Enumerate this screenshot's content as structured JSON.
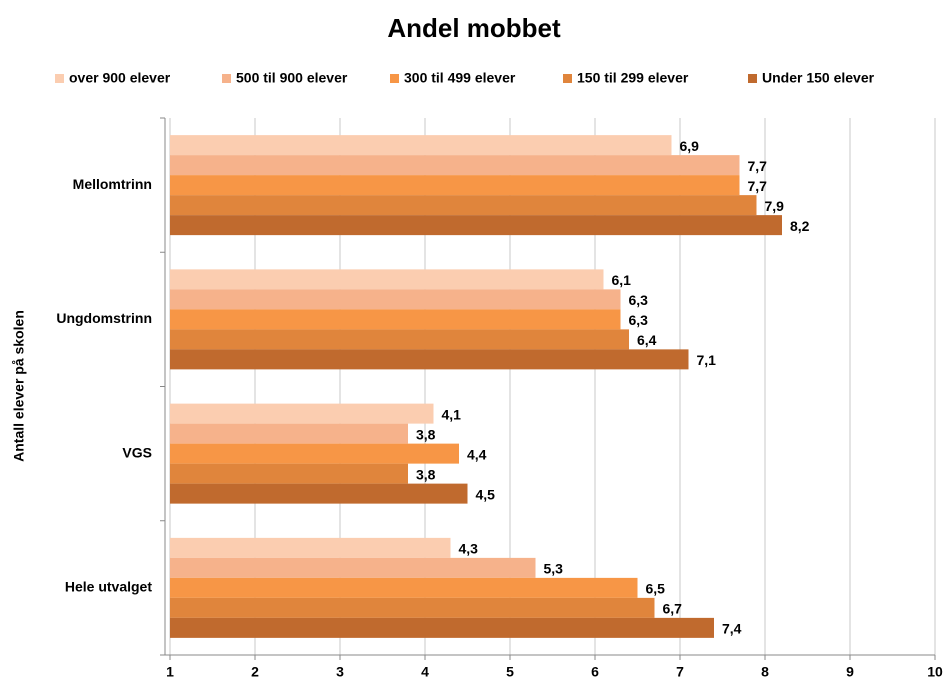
{
  "chart_data": {
    "type": "hbar",
    "title": "Andel mobbet",
    "y_label": "Antall elever på skolen",
    "categories": [
      "Mellomtrinn",
      "Ungdomstrinn",
      "VGS",
      "Hele utvalget"
    ],
    "series": [
      {
        "name": "over 900 elever",
        "color": "#fbcdb0",
        "values": [
          6.9,
          6.1,
          4.1,
          4.3
        ],
        "value_labels": [
          "6,9",
          "6,1",
          "4,1",
          "4,3"
        ]
      },
      {
        "name": "500 til 900 elever",
        "color": "#f6b28b",
        "values": [
          7.7,
          6.3,
          3.8,
          5.3
        ],
        "value_labels": [
          "7,7",
          "6,3",
          "3,8",
          "5,3"
        ]
      },
      {
        "name": "300 til 499 elever",
        "color": "#f79646",
        "values": [
          7.7,
          6.3,
          4.4,
          6.5
        ],
        "value_labels": [
          "7,7",
          "6,3",
          "4,4",
          "6,5"
        ]
      },
      {
        "name": "150 til 299 elever",
        "color": "#e0853c",
        "values": [
          7.9,
          6.4,
          3.8,
          6.7
        ],
        "value_labels": [
          "7,9",
          "6,4",
          "3,8",
          "6,7"
        ]
      },
      {
        "name": "Under 150 elever",
        "color": "#c06a2e",
        "values": [
          8.2,
          7.1,
          4.5,
          7.4
        ],
        "value_labels": [
          "8,2",
          "7,1",
          "4,5",
          "7,4"
        ]
      }
    ],
    "xlim": [
      1,
      10
    ],
    "xticks": [
      1,
      2,
      3,
      4,
      5,
      6,
      7,
      8,
      9,
      10
    ],
    "grid": true,
    "legend": "top"
  }
}
